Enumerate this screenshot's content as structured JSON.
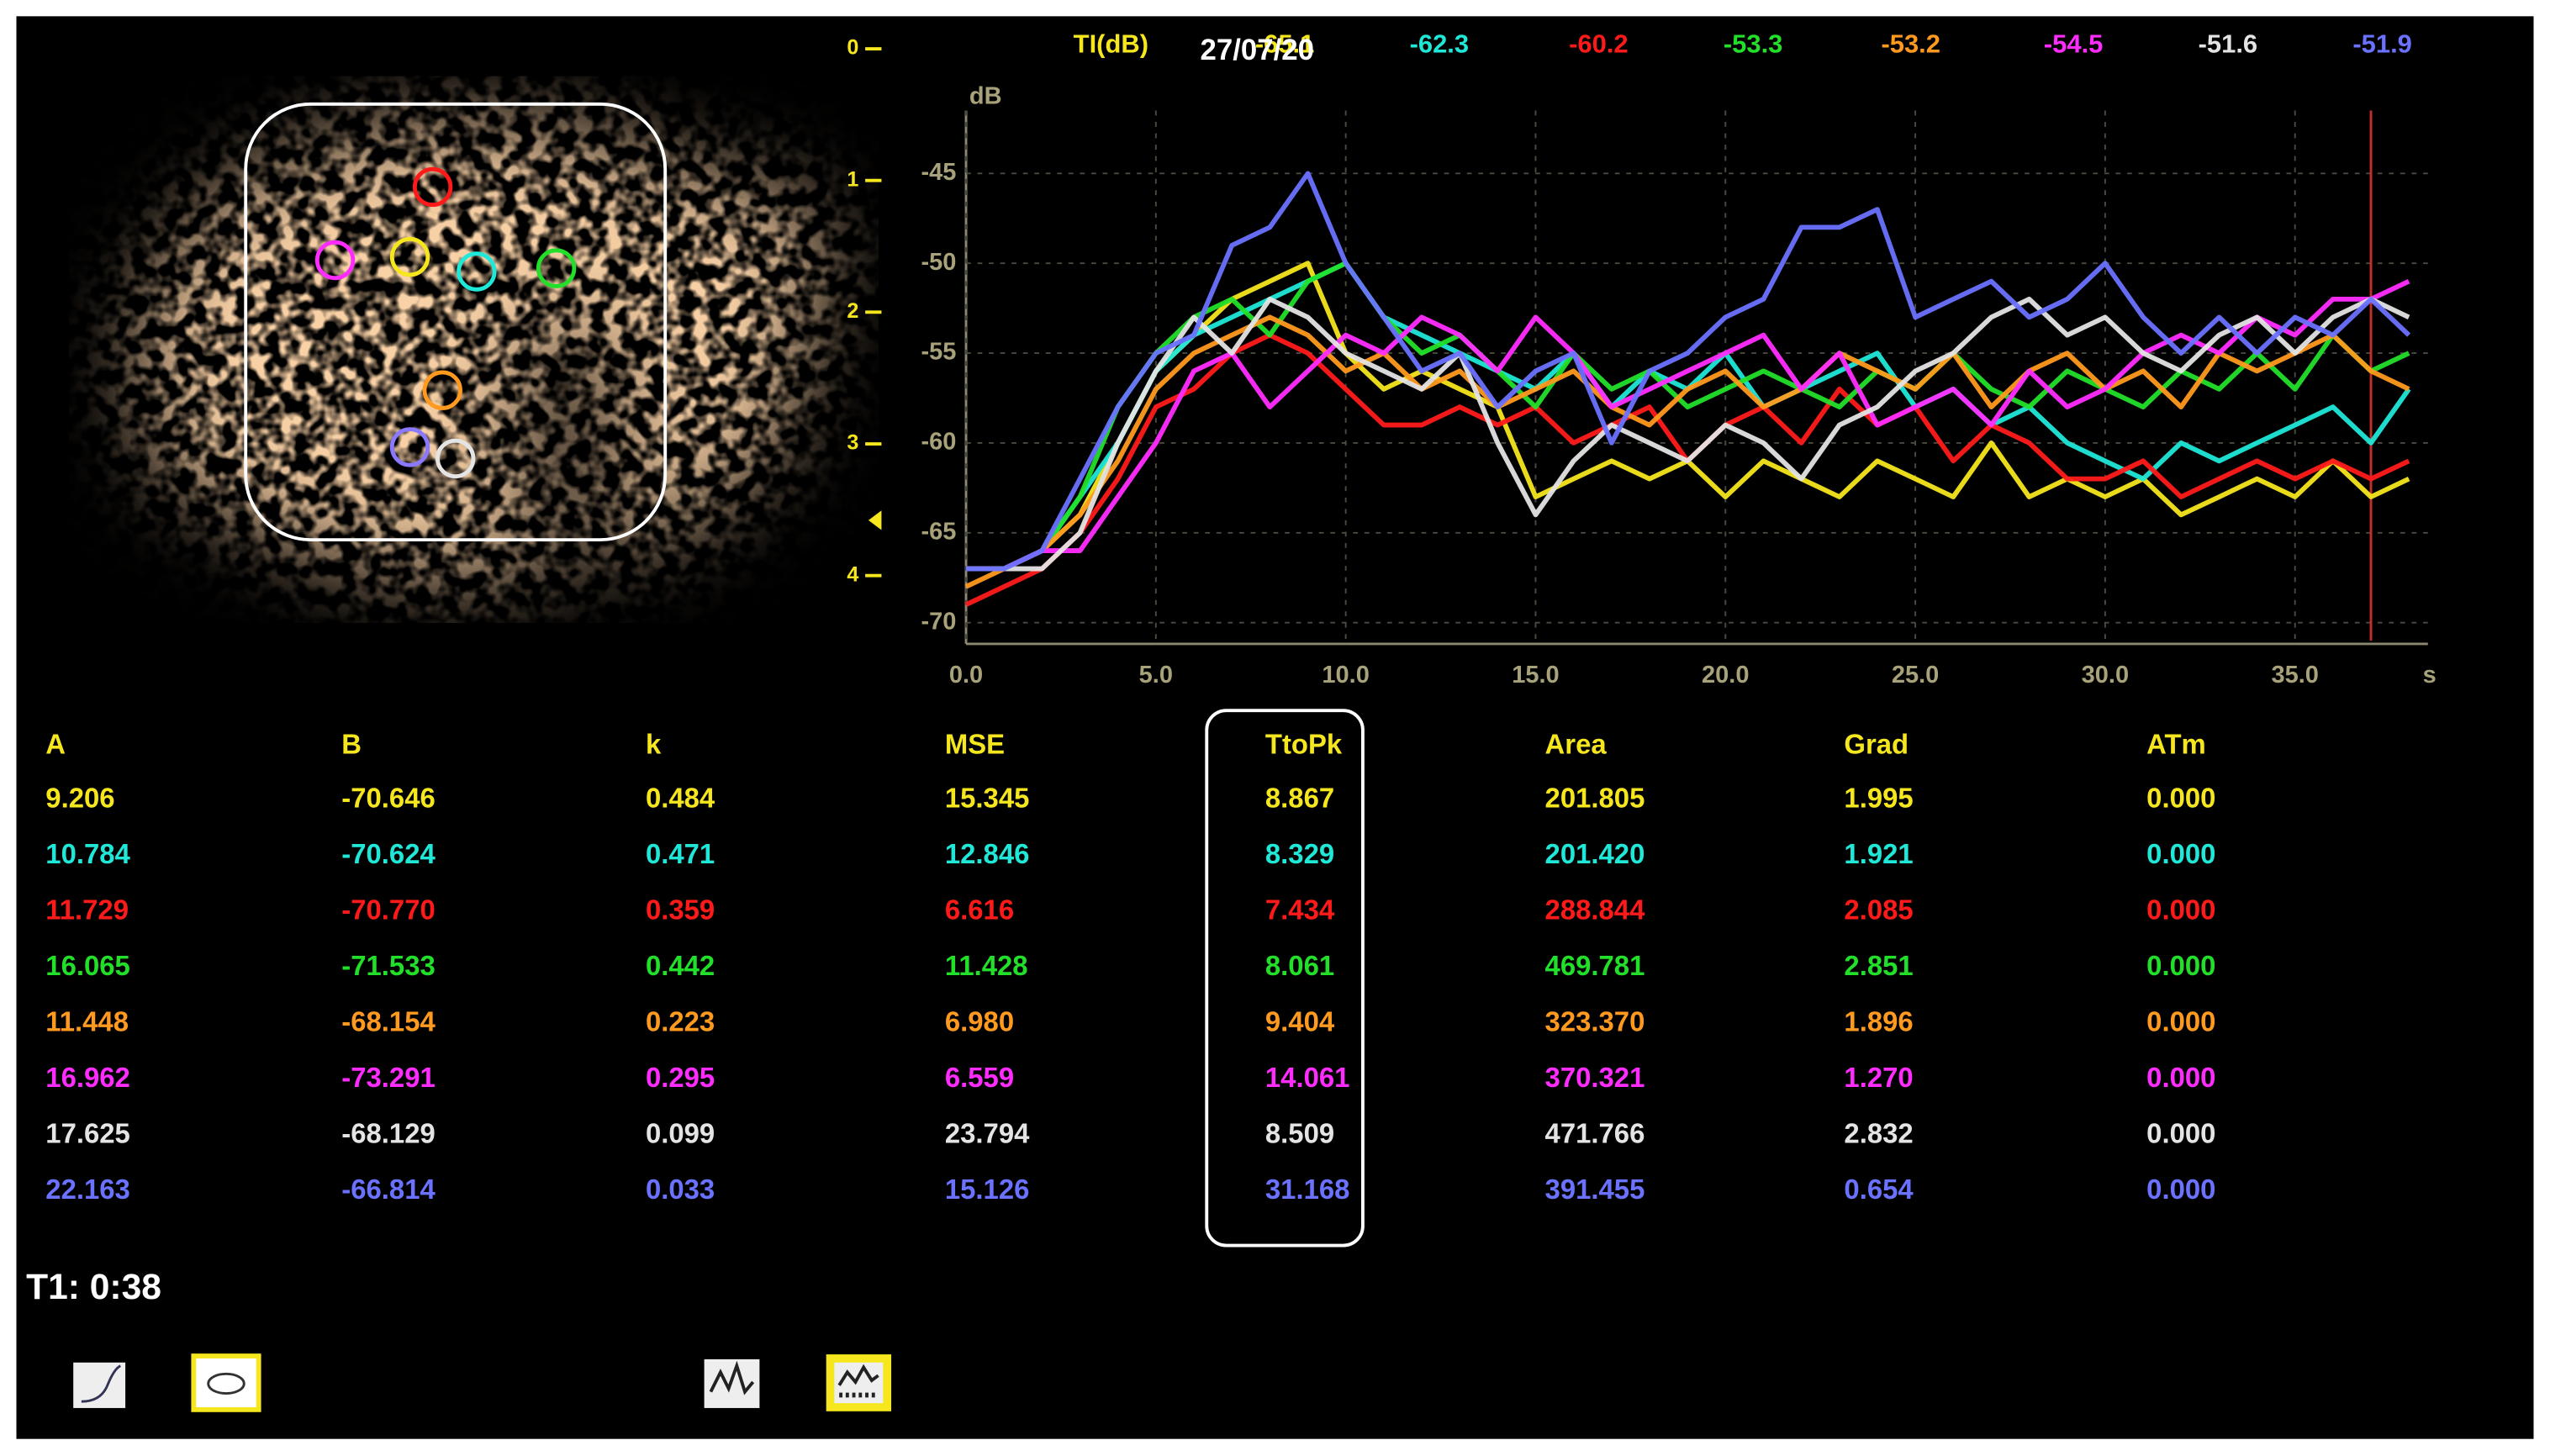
{
  "header": {
    "ti_label": "TI(dB)",
    "date": "27/07/20"
  },
  "chart_data": {
    "type": "line",
    "y_label": "dB",
    "x_unit": "s",
    "x": [
      0,
      1,
      2,
      3,
      4,
      5,
      6,
      7,
      8,
      9,
      10,
      11,
      12,
      13,
      14,
      15,
      16,
      17,
      18,
      19,
      20,
      21,
      22,
      23,
      24,
      25,
      26,
      27,
      28,
      29,
      30,
      31,
      32,
      33,
      34,
      35,
      36,
      37,
      38
    ],
    "xlim": [
      0,
      38.5
    ],
    "ylim": [
      -71,
      -41.5
    ],
    "xticks": [
      {
        "value": 0,
        "label": "0.0"
      },
      {
        "value": 5,
        "label": "5.0"
      },
      {
        "value": 10,
        "label": "10.0"
      },
      {
        "value": 15,
        "label": "15.0"
      },
      {
        "value": 20,
        "label": "20.0"
      },
      {
        "value": 25,
        "label": "25.0"
      },
      {
        "value": 30,
        "label": "30.0"
      },
      {
        "value": 35,
        "label": "35.0"
      }
    ],
    "yticks": [
      -45,
      -50,
      -55,
      -60,
      -65,
      -70
    ],
    "grid": true,
    "cursor_x": 37,
    "series": [
      {
        "color": "#f5e61e",
        "ti": -65.1,
        "values": [
          -67,
          -67,
          -66,
          -64,
          -60,
          -56,
          -54,
          -52,
          -51,
          -50,
          -55,
          -57,
          -56,
          -57,
          -58,
          -63,
          -62,
          -61,
          -62,
          -61,
          -63,
          -61,
          -62,
          -63,
          -61,
          -62,
          -63,
          -60,
          -63,
          -62,
          -63,
          -62,
          -64,
          -63,
          -62,
          -63,
          -61,
          -63,
          -62
        ]
      },
      {
        "color": "#20e8d8",
        "ti": -62.3,
        "values": [
          -67,
          -67,
          -66,
          -63,
          -60,
          -56,
          -54,
          -53,
          -52,
          -51,
          -50,
          -53,
          -54,
          -55,
          -56,
          -57,
          -55,
          -58,
          -56,
          -57,
          -55,
          -58,
          -57,
          -56,
          -55,
          -58,
          -57,
          -59,
          -58,
          -60,
          -61,
          -62,
          -60,
          -61,
          -60,
          -59,
          -58,
          -60,
          -57
        ]
      },
      {
        "color": "#ff1a1a",
        "ti": -60.2,
        "values": [
          -69,
          -68,
          -67,
          -65,
          -62,
          -58,
          -57,
          -55,
          -54,
          -55,
          -57,
          -59,
          -59,
          -58,
          -59,
          -58,
          -60,
          -59,
          -58,
          -61,
          -59,
          -58,
          -60,
          -57,
          -59,
          -58,
          -61,
          -59,
          -60,
          -62,
          -62,
          -61,
          -63,
          -62,
          -61,
          -62,
          -61,
          -62,
          -61
        ]
      },
      {
        "color": "#22e02a",
        "ti": -53.3,
        "values": [
          -67,
          -67,
          -66,
          -63,
          -58,
          -55,
          -53,
          -52,
          -54,
          -51,
          -50,
          -53,
          -55,
          -54,
          -56,
          -58,
          -55,
          -57,
          -56,
          -58,
          -57,
          -56,
          -57,
          -58,
          -56,
          -57,
          -55,
          -57,
          -58,
          -56,
          -57,
          -58,
          -56,
          -57,
          -55,
          -57,
          -54,
          -56,
          -55
        ]
      },
      {
        "color": "#ff9a1e",
        "ti": -53.2,
        "values": [
          -68,
          -67,
          -66,
          -64,
          -61,
          -57,
          -55,
          -54,
          -53,
          -54,
          -56,
          -55,
          -57,
          -56,
          -58,
          -57,
          -56,
          -58,
          -59,
          -57,
          -56,
          -58,
          -57,
          -55,
          -56,
          -57,
          -55,
          -58,
          -56,
          -55,
          -57,
          -56,
          -58,
          -55,
          -56,
          -55,
          -54,
          -56,
          -57
        ]
      },
      {
        "color": "#ff2cff",
        "ti": -54.5,
        "values": [
          -67,
          -67,
          -66,
          -66,
          -63,
          -60,
          -56,
          -55,
          -58,
          -56,
          -54,
          -55,
          -53,
          -54,
          -56,
          -53,
          -55,
          -58,
          -57,
          -56,
          -55,
          -54,
          -57,
          -55,
          -59,
          -58,
          -57,
          -59,
          -56,
          -58,
          -57,
          -55,
          -54,
          -55,
          -53,
          -54,
          -52,
          -52,
          -51
        ]
      },
      {
        "color": "#e4e4e4",
        "ti": -51.6,
        "values": [
          -67,
          -67,
          -67,
          -65,
          -60,
          -56,
          -53,
          -55,
          -52,
          -53,
          -55,
          -56,
          -57,
          -55,
          -60,
          -64,
          -61,
          -59,
          -60,
          -61,
          -59,
          -60,
          -62,
          -59,
          -58,
          -56,
          -55,
          -53,
          -52,
          -54,
          -53,
          -55,
          -56,
          -54,
          -53,
          -55,
          -53,
          -52,
          -53
        ]
      },
      {
        "color": "#6a72ff",
        "ti": -51.9,
        "values": [
          -67,
          -67,
          -66,
          -62,
          -58,
          -55,
          -54,
          -49,
          -48,
          -45,
          -50,
          -53,
          -56,
          -55,
          -58,
          -56,
          -55,
          -60,
          -56,
          -55,
          -53,
          -52,
          -48,
          -48,
          -47,
          -53,
          -52,
          -51,
          -53,
          -52,
          -50,
          -53,
          -55,
          -53,
          -55,
          -53,
          -54,
          -52,
          -54
        ]
      }
    ]
  },
  "depth_scale": {
    "ticks": [
      0,
      1,
      2,
      3,
      4
    ]
  },
  "table": {
    "columns": [
      "A",
      "B",
      "k",
      "MSE",
      "TtoPk",
      "Area",
      "Grad",
      "ATm"
    ],
    "rows": [
      [
        "9.206",
        "-70.646",
        "0.484",
        "15.345",
        "8.867",
        "201.805",
        "1.995",
        "0.000"
      ],
      [
        "10.784",
        "-70.624",
        "0.471",
        "12.846",
        "8.329",
        "201.420",
        "1.921",
        "0.000"
      ],
      [
        "11.729",
        "-70.770",
        "0.359",
        "6.616",
        "7.434",
        "288.844",
        "2.085",
        "0.000"
      ],
      [
        "16.065",
        "-71.533",
        "0.442",
        "11.428",
        "8.061",
        "469.781",
        "2.851",
        "0.000"
      ],
      [
        "11.448",
        "-68.154",
        "0.223",
        "6.980",
        "9.404",
        "323.370",
        "1.896",
        "0.000"
      ],
      [
        "16.962",
        "-73.291",
        "0.295",
        "6.559",
        "14.061",
        "370.321",
        "1.270",
        "0.000"
      ],
      [
        "17.625",
        "-68.129",
        "0.099",
        "23.794",
        "8.509",
        "471.766",
        "2.832",
        "0.000"
      ],
      [
        "22.163",
        "-66.814",
        "0.033",
        "15.126",
        "31.168",
        "391.455",
        "0.654",
        "0.000"
      ]
    ]
  },
  "footer": {
    "timer": "T1: 0:38"
  }
}
